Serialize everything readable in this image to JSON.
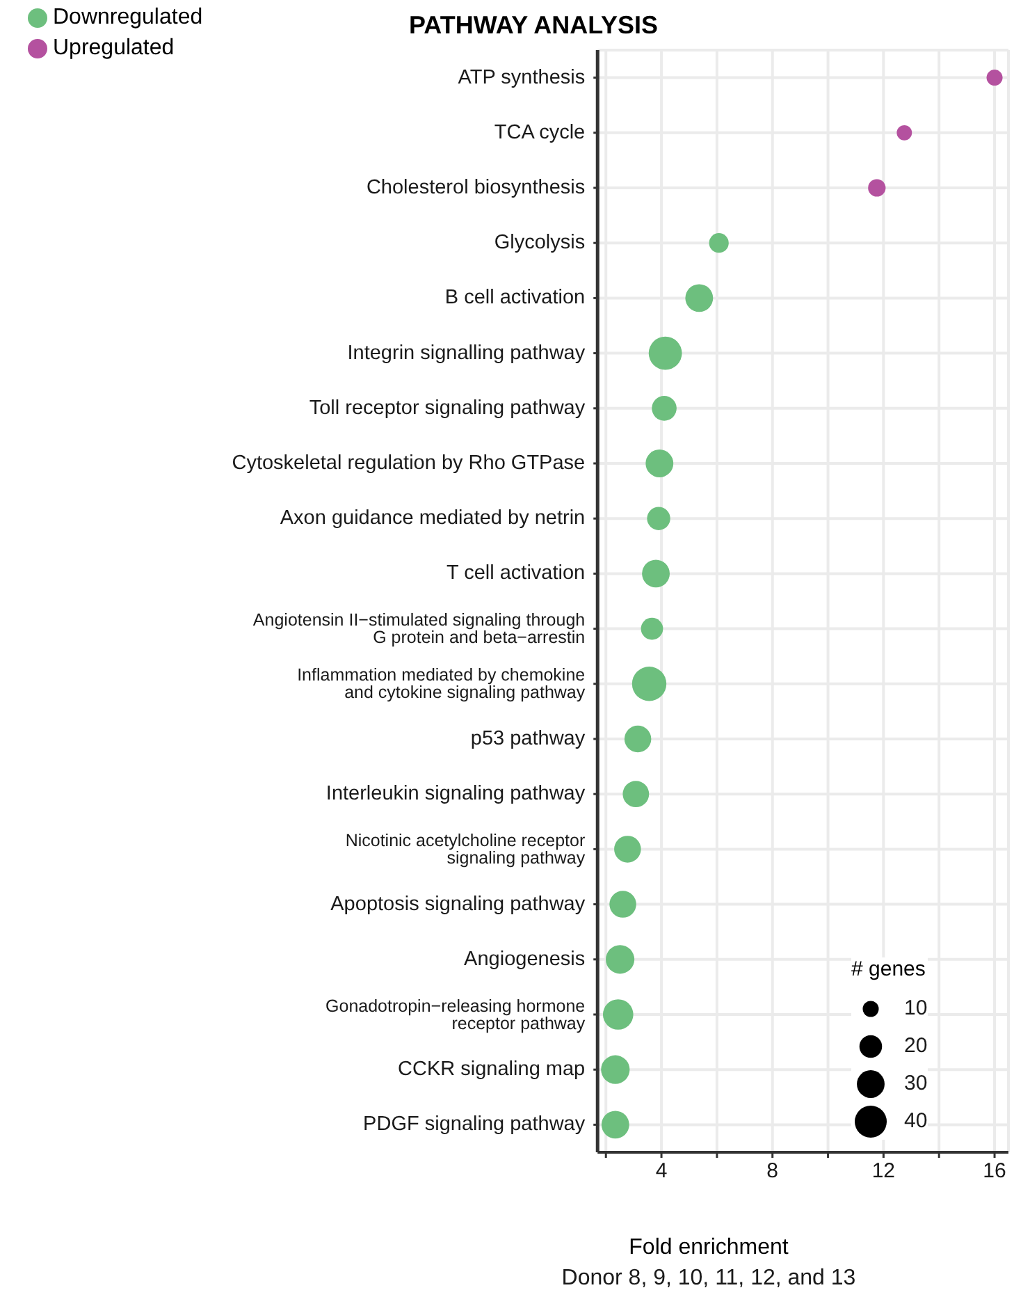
{
  "chart_data": {
    "type": "bubble",
    "title": "PATHWAY ANALYSIS",
    "xlabel": "Fold enrichment",
    "orientation": "horizontal",
    "categories": [
      "ATP synthesis",
      "TCA cycle",
      "Cholesterol biosynthesis",
      "Glycolysis",
      "B cell activation",
      "Integrin signalling pathway",
      "Toll receptor signaling pathway",
      "Cytoskeletal regulation by Rho GTPase",
      "Axon guidance mediated by netrin",
      "T cell activation",
      "Angiotensin II−stimulated signaling through\nG protein and beta−arrestin",
      "Inflammation mediated by chemokine\nand cytokine signaling pathway",
      "p53 pathway",
      "Interleukin signaling pathway",
      "Nicotinic acetylcholine receptor\nsignaling pathway",
      "Apoptosis signaling pathway",
      "Angiogenesis",
      "Gonadotropin−releasing hormone\nreceptor pathway",
      "CCKR signaling map",
      "PDGF signaling pathway"
    ],
    "series": [
      {
        "name": "Upregulated",
        "color": "#b4519f",
        "values": [
          16.0,
          12.75,
          11.76,
          null,
          null,
          null,
          null,
          null,
          null,
          null,
          null,
          null,
          null,
          null,
          null,
          null,
          null,
          null,
          null,
          null
        ],
        "sizes": [
          10,
          9,
          12,
          null,
          null,
          null,
          null,
          null,
          null,
          null,
          null,
          null,
          null,
          null,
          null,
          null,
          null,
          null,
          null,
          null
        ]
      },
      {
        "name": "Downregulated",
        "color": "#6dbf7e",
        "values": [
          null,
          null,
          null,
          6.07,
          5.36,
          4.14,
          4.1,
          3.93,
          3.9,
          3.8,
          3.66,
          3.56,
          3.15,
          3.08,
          2.78,
          2.61,
          2.51,
          2.44,
          2.34,
          2.34
        ],
        "sizes": [
          null,
          null,
          null,
          15,
          30,
          43,
          24,
          30,
          21,
          30,
          19,
          46,
          28,
          27,
          28,
          28,
          32,
          36,
          32,
          30
        ]
      }
    ],
    "legend_title": "# genes",
    "size_legend": [
      10,
      20,
      30,
      40
    ],
    "xlim": [
      1.7,
      16.5
    ],
    "xticks": [
      {
        "value": 2,
        "label": null
      },
      4,
      {
        "value": 6,
        "label": null
      },
      8,
      {
        "value": 10,
        "label": null
      },
      12,
      {
        "value": 14,
        "label": null
      },
      16
    ],
    "grid": true,
    "legend": "top left",
    "annotations": [
      "Donor 8, 9, 10, 11, 12, and 13"
    ]
  }
}
